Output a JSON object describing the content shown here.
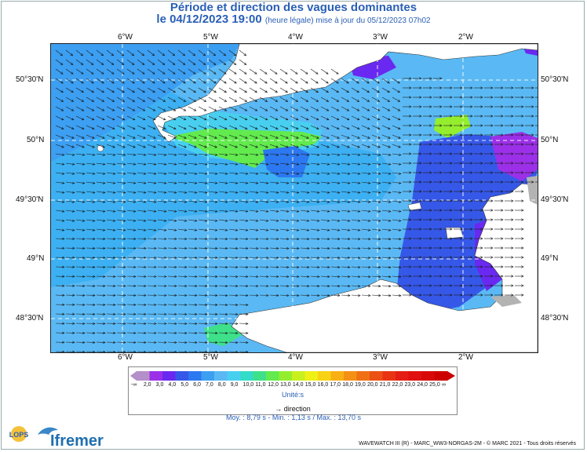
{
  "title": {
    "line1": "Période et direction des vagues dominantes",
    "date": "le 04/12/2023 19:00",
    "note": "(heure légale) mise à jour du 05/12/2023 07h02"
  },
  "axes": {
    "lon_labels": [
      "6°W",
      "5°W",
      "4°W",
      "3°W",
      "2°W"
    ],
    "lat_labels": [
      "50°30'N",
      "50°N",
      "49°30'N",
      "49°N",
      "48°30'N"
    ]
  },
  "legend": {
    "ticks": [
      "-∞",
      "2,0",
      "3,0",
      "4,0",
      "5,0",
      "6,0",
      "7,0",
      "8,0",
      "9,0",
      "10,0",
      "11,0",
      "12,0",
      "13,0",
      "14,0",
      "15,0",
      "16,0",
      "17,0",
      "18,0",
      "19,0",
      "20,0",
      "21,0",
      "22,0",
      "23,0",
      "24,0",
      "25,0",
      "∞"
    ],
    "colors": [
      "#b58fc9",
      "#9b30e8",
      "#6a29f0",
      "#3658e8",
      "#2c78f0",
      "#3c9ff2",
      "#5ab9f4",
      "#48cff0",
      "#33dcc8",
      "#3ee08a",
      "#62ea4e",
      "#94ee2e",
      "#c8f01e",
      "#eef016",
      "#f8d214",
      "#f8b014",
      "#f49014",
      "#f07014",
      "#ec5014",
      "#e83414",
      "#e41e14",
      "#e01010",
      "#d80808",
      "#cc0000"
    ],
    "unit": "Unité:s",
    "direction_label": "direction"
  },
  "stats": {
    "moy": "Moy. : 8,79 s",
    "min": "Min. : 1,13 s",
    "max": "Max. : 13,70 s",
    "sep": "-",
    "sep2": "/"
  },
  "credit": "WAVEWATCH III (R) - MARC_WW3-NORGAS-2M - © MARC 2021 - Tous droits réservés",
  "logos": {
    "lops": "LOPS",
    "ifremer": "Ifremer"
  }
}
